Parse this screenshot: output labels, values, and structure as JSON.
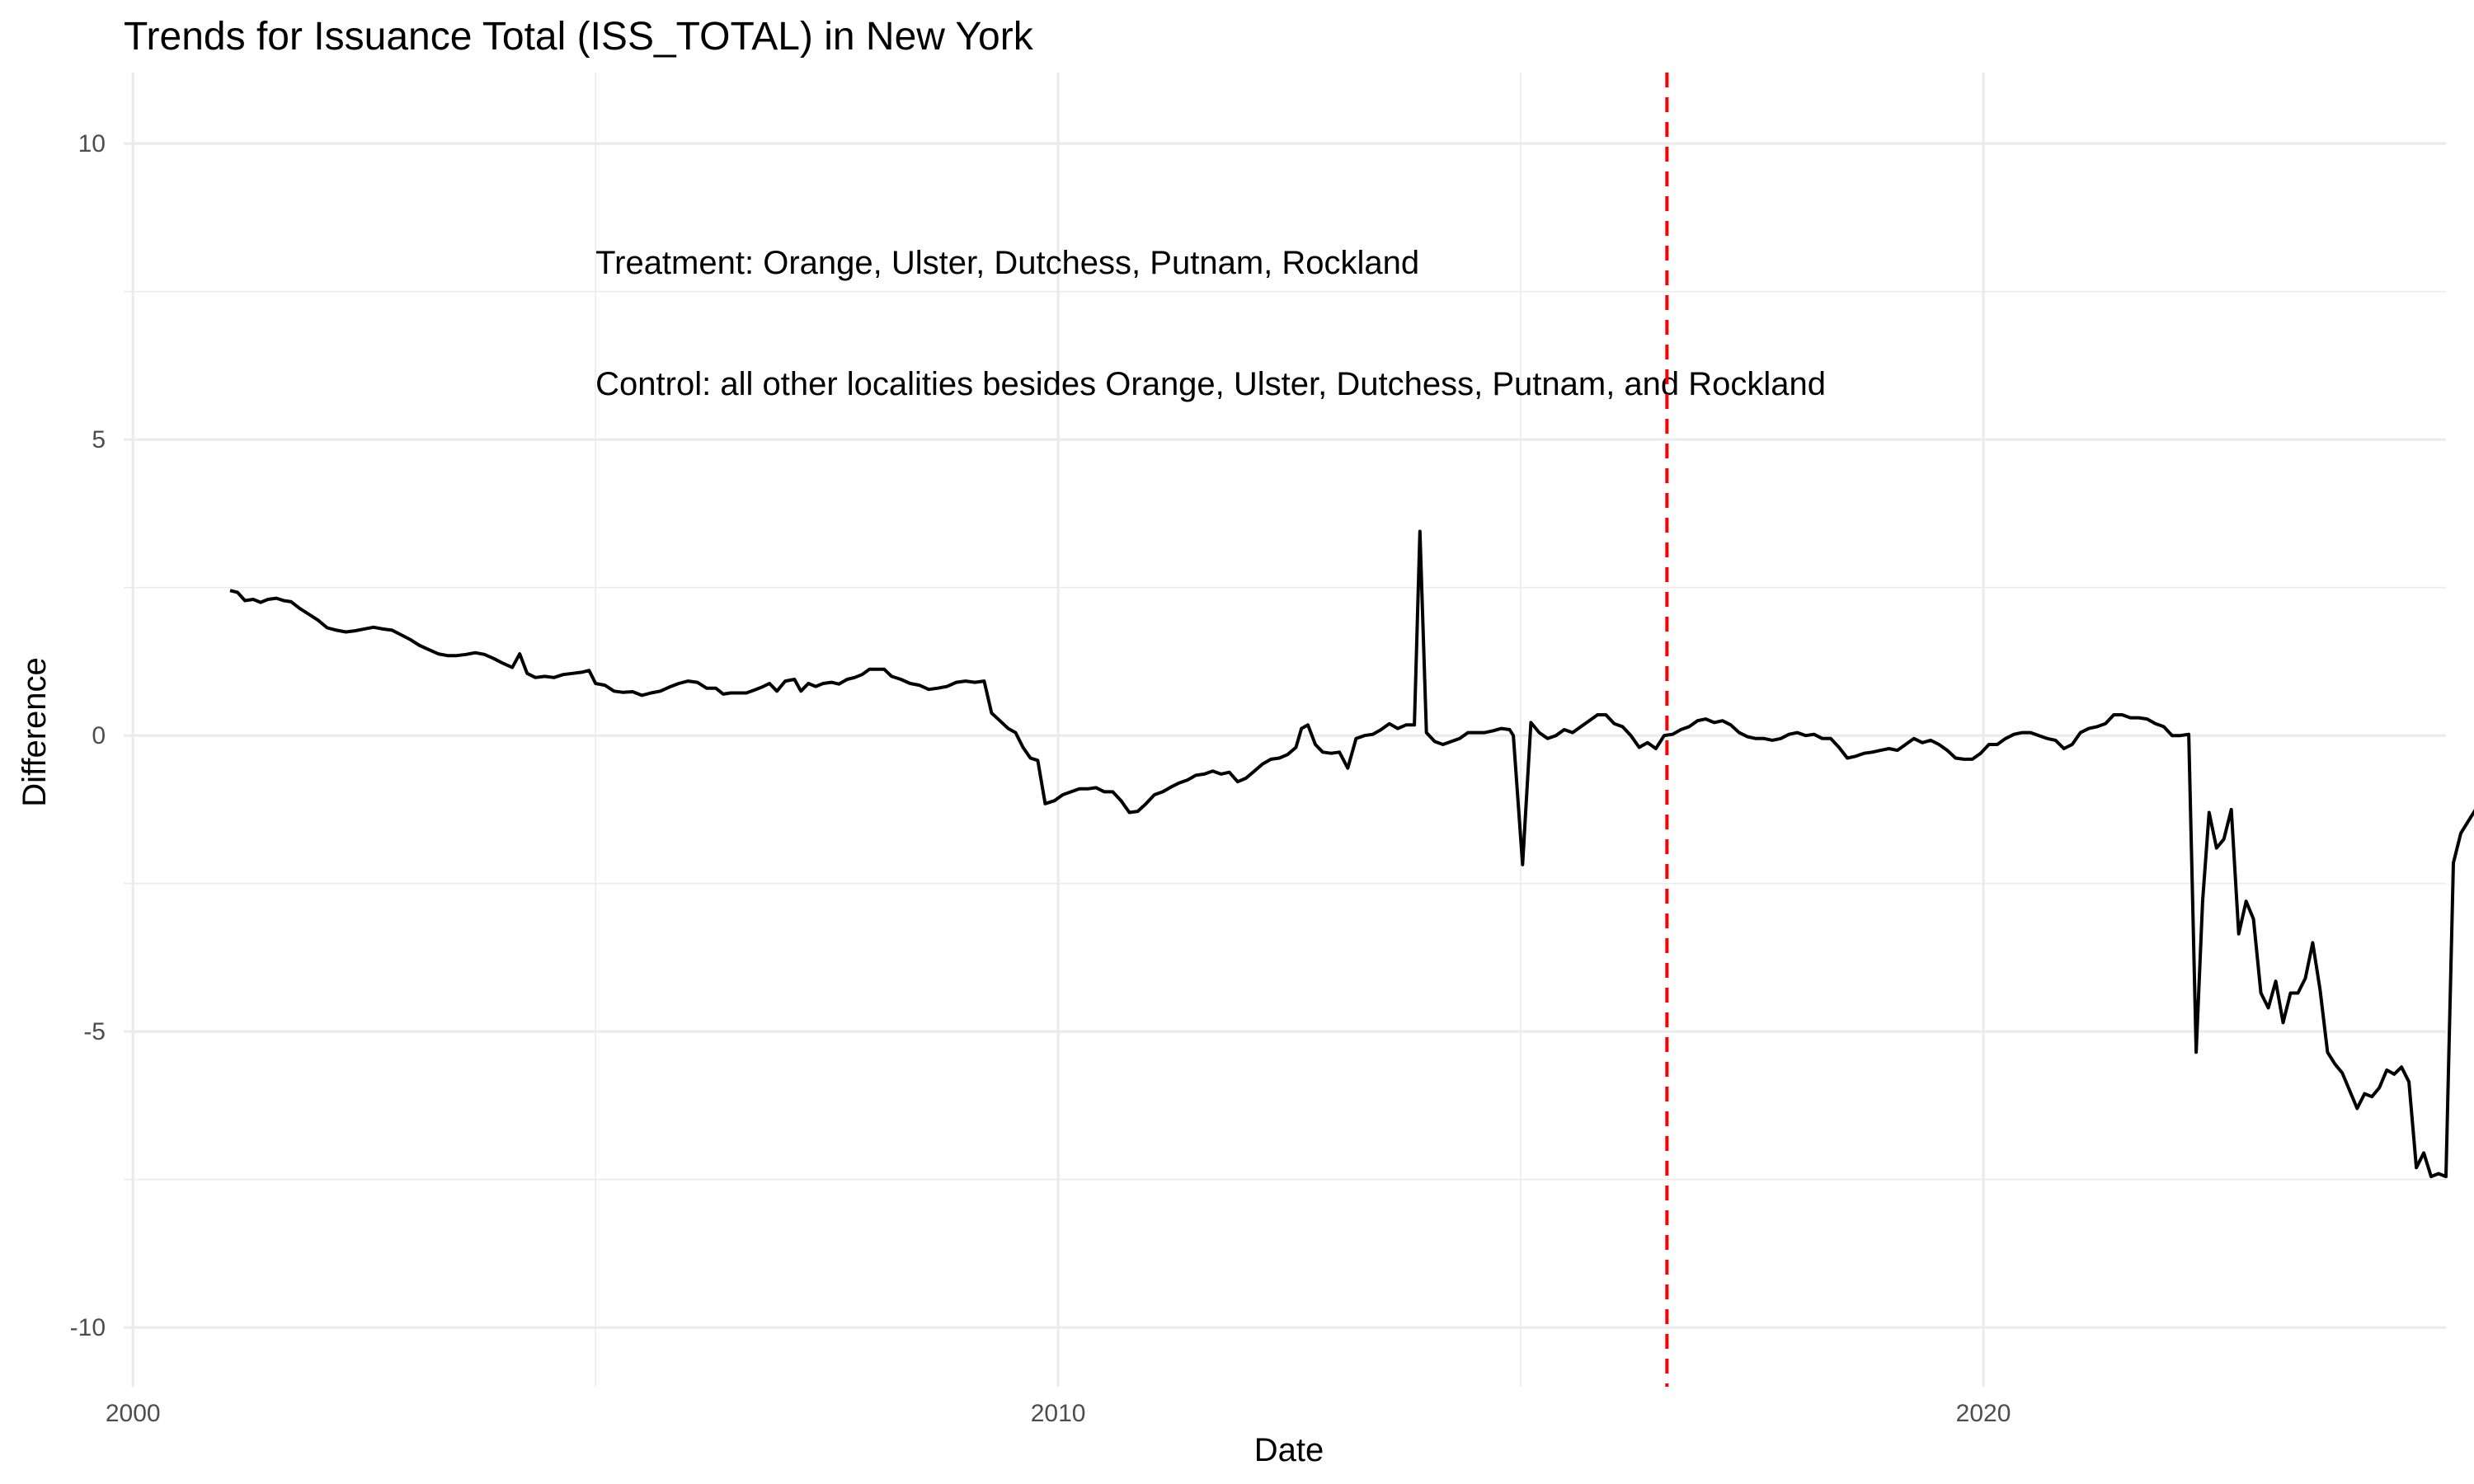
{
  "chart_data": {
    "type": "line",
    "title": "Trends for Issuance Total (ISS_TOTAL) in New York",
    "xlabel": "Date",
    "ylabel": "Difference",
    "xlim": [
      1999.9,
      2025.0
    ],
    "ylim": [
      -11.0,
      11.2
    ],
    "x_ticks": [
      2000,
      2010,
      2020
    ],
    "x_tick_labels": [
      "2000",
      "2010",
      "2020"
    ],
    "y_ticks": [
      -10,
      -5,
      0,
      5,
      10
    ],
    "y_tick_labels": [
      "-10",
      "-5",
      "0",
      "5",
      "10"
    ],
    "grid": true,
    "reference_line": {
      "x": 2016.58,
      "style": "dashed",
      "color": "#ff0000"
    },
    "annotations": [
      {
        "text": "Treatment: Orange, Ulster, Dutchess, Putnam, Rockland",
        "x": 2005.0,
        "y": 8.0
      },
      {
        "text": "Control: all other localities besides Orange, Ulster, Dutchess, Putnam, and Rockland",
        "x": 2005.0,
        "y": 5.95
      }
    ],
    "line_color": "#000000",
    "series": [
      {
        "points": [
          [
            2001.05,
            2.45
          ],
          [
            2001.13,
            2.42
          ],
          [
            2001.21,
            2.28
          ],
          [
            2001.3,
            2.3
          ],
          [
            2001.38,
            2.25
          ],
          [
            2001.46,
            2.3
          ],
          [
            2001.55,
            2.32
          ],
          [
            2001.63,
            2.28
          ],
          [
            2001.71,
            2.26
          ],
          [
            2001.8,
            2.15
          ],
          [
            2001.9,
            2.05
          ],
          [
            2002.0,
            1.95
          ],
          [
            2002.1,
            1.82
          ],
          [
            2002.2,
            1.78
          ],
          [
            2002.3,
            1.75
          ],
          [
            2002.4,
            1.77
          ],
          [
            2002.5,
            1.8
          ],
          [
            2002.6,
            1.83
          ],
          [
            2002.7,
            1.8
          ],
          [
            2002.8,
            1.78
          ],
          [
            2002.9,
            1.7
          ],
          [
            2003.0,
            1.62
          ],
          [
            2003.1,
            1.52
          ],
          [
            2003.2,
            1.45
          ],
          [
            2003.3,
            1.38
          ],
          [
            2003.4,
            1.35
          ],
          [
            2003.5,
            1.35
          ],
          [
            2003.6,
            1.37
          ],
          [
            2003.7,
            1.4
          ],
          [
            2003.8,
            1.37
          ],
          [
            2003.9,
            1.3
          ],
          [
            2004.0,
            1.22
          ],
          [
            2004.1,
            1.15
          ],
          [
            2004.18,
            1.38
          ],
          [
            2004.26,
            1.05
          ],
          [
            2004.35,
            0.98
          ],
          [
            2004.45,
            1.0
          ],
          [
            2004.55,
            0.98
          ],
          [
            2004.65,
            1.03
          ],
          [
            2004.75,
            1.05
          ],
          [
            2004.85,
            1.07
          ],
          [
            2004.93,
            1.1
          ],
          [
            2005.0,
            0.88
          ],
          [
            2005.1,
            0.85
          ],
          [
            2005.2,
            0.75
          ],
          [
            2005.3,
            0.73
          ],
          [
            2005.4,
            0.74
          ],
          [
            2005.5,
            0.68
          ],
          [
            2005.6,
            0.72
          ],
          [
            2005.7,
            0.75
          ],
          [
            2005.8,
            0.82
          ],
          [
            2005.9,
            0.88
          ],
          [
            2006.0,
            0.92
          ],
          [
            2006.1,
            0.9
          ],
          [
            2006.2,
            0.8
          ],
          [
            2006.3,
            0.8
          ],
          [
            2006.38,
            0.7
          ],
          [
            2006.46,
            0.72
          ],
          [
            2006.55,
            0.72
          ],
          [
            2006.63,
            0.72
          ],
          [
            2006.72,
            0.77
          ],
          [
            2006.8,
            0.82
          ],
          [
            2006.88,
            0.88
          ],
          [
            2006.96,
            0.75
          ],
          [
            2007.05,
            0.92
          ],
          [
            2007.15,
            0.95
          ],
          [
            2007.22,
            0.75
          ],
          [
            2007.3,
            0.88
          ],
          [
            2007.38,
            0.83
          ],
          [
            2007.46,
            0.88
          ],
          [
            2007.55,
            0.9
          ],
          [
            2007.63,
            0.87
          ],
          [
            2007.72,
            0.95
          ],
          [
            2007.8,
            0.98
          ],
          [
            2007.88,
            1.03
          ],
          [
            2007.96,
            1.12
          ],
          [
            2008.05,
            1.12
          ],
          [
            2008.12,
            1.12
          ],
          [
            2008.2,
            1.0
          ],
          [
            2008.3,
            0.95
          ],
          [
            2008.4,
            0.88
          ],
          [
            2008.5,
            0.85
          ],
          [
            2008.6,
            0.78
          ],
          [
            2008.7,
            0.8
          ],
          [
            2008.8,
            0.83
          ],
          [
            2008.9,
            0.9
          ],
          [
            2009.0,
            0.92
          ],
          [
            2009.1,
            0.9
          ],
          [
            2009.2,
            0.92
          ],
          [
            2009.28,
            0.38
          ],
          [
            2009.37,
            0.25
          ],
          [
            2009.46,
            0.12
          ],
          [
            2009.54,
            0.05
          ],
          [
            2009.62,
            -0.2
          ],
          [
            2009.7,
            -0.38
          ],
          [
            2009.78,
            -0.42
          ],
          [
            2009.86,
            -1.15
          ],
          [
            2009.96,
            -1.1
          ],
          [
            2010.05,
            -1.0
          ],
          [
            2010.14,
            -0.95
          ],
          [
            2010.23,
            -0.9
          ],
          [
            2010.32,
            -0.9
          ],
          [
            2010.41,
            -0.88
          ],
          [
            2010.5,
            -0.95
          ],
          [
            2010.59,
            -0.95
          ],
          [
            2010.68,
            -1.1
          ],
          [
            2010.77,
            -1.3
          ],
          [
            2010.86,
            -1.28
          ],
          [
            2010.95,
            -1.15
          ],
          [
            2011.04,
            -1.0
          ],
          [
            2011.13,
            -0.95
          ],
          [
            2011.22,
            -0.87
          ],
          [
            2011.31,
            -0.8
          ],
          [
            2011.4,
            -0.75
          ],
          [
            2011.49,
            -0.67
          ],
          [
            2011.58,
            -0.65
          ],
          [
            2011.67,
            -0.6
          ],
          [
            2011.76,
            -0.65
          ],
          [
            2011.85,
            -0.62
          ],
          [
            2011.94,
            -0.78
          ],
          [
            2012.03,
            -0.72
          ],
          [
            2012.12,
            -0.6
          ],
          [
            2012.21,
            -0.48
          ],
          [
            2012.3,
            -0.4
          ],
          [
            2012.39,
            -0.38
          ],
          [
            2012.48,
            -0.32
          ],
          [
            2012.57,
            -0.2
          ],
          [
            2012.63,
            0.12
          ],
          [
            2012.7,
            0.18
          ],
          [
            2012.78,
            -0.15
          ],
          [
            2012.86,
            -0.28
          ],
          [
            2012.95,
            -0.3
          ],
          [
            2013.04,
            -0.28
          ],
          [
            2013.13,
            -0.55
          ],
          [
            2013.22,
            -0.05
          ],
          [
            2013.31,
            0.0
          ],
          [
            2013.4,
            0.02
          ],
          [
            2013.49,
            0.1
          ],
          [
            2013.58,
            0.2
          ],
          [
            2013.67,
            0.12
          ],
          [
            2013.76,
            0.18
          ],
          [
            2013.85,
            0.18
          ],
          [
            2013.91,
            3.45
          ],
          [
            2013.98,
            0.05
          ],
          [
            2014.07,
            -0.1
          ],
          [
            2014.16,
            -0.15
          ],
          [
            2014.25,
            -0.1
          ],
          [
            2014.34,
            -0.05
          ],
          [
            2014.43,
            0.05
          ],
          [
            2014.52,
            0.05
          ],
          [
            2014.61,
            0.05
          ],
          [
            2014.7,
            0.08
          ],
          [
            2014.79,
            0.12
          ],
          [
            2014.88,
            0.1
          ],
          [
            2014.92,
            0.0
          ],
          [
            2015.02,
            -2.18
          ],
          [
            2015.11,
            0.22
          ],
          [
            2015.2,
            0.05
          ],
          [
            2015.29,
            -0.05
          ],
          [
            2015.38,
            0.0
          ],
          [
            2015.47,
            0.1
          ],
          [
            2015.56,
            0.05
          ],
          [
            2015.65,
            0.15
          ],
          [
            2015.74,
            0.25
          ],
          [
            2015.83,
            0.35
          ],
          [
            2015.92,
            0.35
          ],
          [
            2016.01,
            0.2
          ],
          [
            2016.1,
            0.15
          ],
          [
            2016.19,
            0.0
          ],
          [
            2016.28,
            -0.2
          ],
          [
            2016.37,
            -0.12
          ],
          [
            2016.46,
            -0.22
          ],
          [
            2016.55,
            0.0
          ],
          [
            2016.64,
            0.02
          ],
          [
            2016.73,
            0.1
          ],
          [
            2016.82,
            0.15
          ],
          [
            2016.91,
            0.25
          ],
          [
            2017.0,
            0.28
          ],
          [
            2017.09,
            0.22
          ],
          [
            2017.18,
            0.25
          ],
          [
            2017.27,
            0.18
          ],
          [
            2017.36,
            0.05
          ],
          [
            2017.45,
            -0.02
          ],
          [
            2017.54,
            -0.05
          ],
          [
            2017.63,
            -0.05
          ],
          [
            2017.72,
            -0.08
          ],
          [
            2017.81,
            -0.05
          ],
          [
            2017.9,
            0.02
          ],
          [
            2017.99,
            0.05
          ],
          [
            2018.08,
            0.0
          ],
          [
            2018.17,
            0.02
          ],
          [
            2018.26,
            -0.05
          ],
          [
            2018.35,
            -0.05
          ],
          [
            2018.44,
            -0.2
          ],
          [
            2018.53,
            -0.38
          ],
          [
            2018.62,
            -0.35
          ],
          [
            2018.71,
            -0.3
          ],
          [
            2018.8,
            -0.28
          ],
          [
            2018.89,
            -0.25
          ],
          [
            2018.98,
            -0.22
          ],
          [
            2019.07,
            -0.25
          ],
          [
            2019.16,
            -0.15
          ],
          [
            2019.25,
            -0.05
          ],
          [
            2019.34,
            -0.12
          ],
          [
            2019.43,
            -0.08
          ],
          [
            2019.52,
            -0.15
          ],
          [
            2019.61,
            -0.25
          ],
          [
            2019.7,
            -0.38
          ],
          [
            2019.79,
            -0.4
          ],
          [
            2019.88,
            -0.4
          ],
          [
            2019.97,
            -0.3
          ],
          [
            2020.06,
            -0.15
          ],
          [
            2020.15,
            -0.15
          ],
          [
            2020.24,
            -0.05
          ],
          [
            2020.33,
            0.02
          ],
          [
            2020.42,
            0.05
          ],
          [
            2020.51,
            0.05
          ],
          [
            2020.6,
            0.0
          ],
          [
            2020.69,
            -0.05
          ],
          [
            2020.78,
            -0.08
          ],
          [
            2020.87,
            -0.22
          ],
          [
            2020.96,
            -0.15
          ],
          [
            2021.05,
            0.05
          ],
          [
            2021.14,
            0.12
          ],
          [
            2021.23,
            0.15
          ],
          [
            2021.32,
            0.2
          ],
          [
            2021.41,
            0.35
          ],
          [
            2021.5,
            0.35
          ],
          [
            2021.59,
            0.3
          ],
          [
            2021.68,
            0.3
          ],
          [
            2021.77,
            0.28
          ],
          [
            2021.86,
            0.2
          ],
          [
            2021.95,
            0.15
          ],
          [
            2022.04,
            0.0
          ],
          [
            2022.13,
            0.0
          ],
          [
            2022.22,
            0.02
          ],
          [
            2022.3,
            -5.35
          ],
          [
            2022.37,
            -2.8
          ],
          [
            2022.44,
            -1.3
          ],
          [
            2022.52,
            -1.9
          ],
          [
            2022.6,
            -1.75
          ],
          [
            2022.68,
            -1.25
          ],
          [
            2022.76,
            -3.35
          ],
          [
            2022.84,
            -2.8
          ],
          [
            2022.92,
            -3.1
          ],
          [
            2023.0,
            -4.35
          ],
          [
            2023.08,
            -4.6
          ],
          [
            2023.16,
            -4.15
          ],
          [
            2023.24,
            -4.85
          ],
          [
            2023.32,
            -4.35
          ],
          [
            2023.4,
            -4.35
          ],
          [
            2023.48,
            -4.1
          ],
          [
            2023.56,
            -3.5
          ],
          [
            2023.64,
            -4.3
          ],
          [
            2023.72,
            -5.35
          ],
          [
            2023.8,
            -5.55
          ],
          [
            2023.88,
            -5.7
          ],
          [
            2023.96,
            -6.0
          ],
          [
            2024.04,
            -6.3
          ],
          [
            2024.12,
            -6.05
          ],
          [
            2024.2,
            -6.1
          ],
          [
            2024.28,
            -5.95
          ],
          [
            2024.36,
            -5.65
          ],
          [
            2024.44,
            -5.72
          ],
          [
            2024.52,
            -5.6
          ],
          [
            2024.6,
            -5.85
          ],
          [
            2024.68,
            -7.3
          ],
          [
            2024.76,
            -7.05
          ],
          [
            2024.84,
            -7.45
          ],
          [
            2024.92,
            -7.4
          ],
          [
            2025.0,
            -7.45
          ],
          [
            2025.08,
            -2.15
          ],
          [
            2025.16,
            -1.65
          ],
          [
            2025.24,
            -1.45
          ],
          [
            2025.32,
            -1.25
          ],
          [
            2025.4,
            -1.12
          ],
          [
            2025.48,
            -1.05
          ],
          [
            2025.56,
            -1.07
          ],
          [
            2025.64,
            -1.22
          ],
          [
            2025.72,
            -1.25
          ],
          [
            2025.8,
            -1.33
          ]
        ]
      }
    ]
  }
}
